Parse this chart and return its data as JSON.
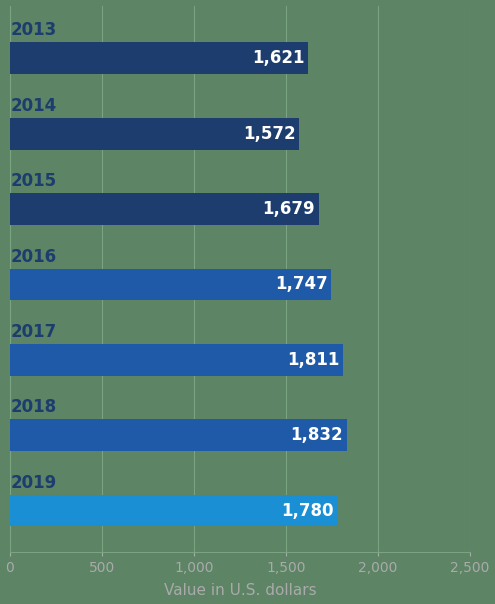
{
  "years": [
    "2013",
    "2014",
    "2015",
    "2016",
    "2017",
    "2018",
    "2019"
  ],
  "values": [
    1621,
    1572,
    1679,
    1747,
    1811,
    1832,
    1780
  ],
  "bar_colors": [
    "#1c3d6e",
    "#1c3d6e",
    "#1c3d6e",
    "#1e5aa8",
    "#1e5aa8",
    "#1e5aa8",
    "#1b8fd4"
  ],
  "bar_labels": [
    "1,621",
    "1,572",
    "1,679",
    "1,747",
    "1,811",
    "1,832",
    "1,780"
  ],
  "xlabel": "Value in U.S. dollars",
  "xlim": [
    0,
    2500
  ],
  "xticks": [
    0,
    500,
    1000,
    1500,
    2000,
    2500
  ],
  "xtick_labels": [
    "0",
    "500",
    "1,000",
    "1,500",
    "2,000",
    "2,500"
  ],
  "background_color": "#5c8465",
  "grid_color": "#7aa382",
  "year_fontsize": 12,
  "xlabel_fontsize": 11,
  "xtick_fontsize": 10,
  "value_label_fontsize": 12,
  "bar_height": 0.42,
  "year_color": "#1c3d6e",
  "tick_label_color": "#aaaaaa",
  "xlabel_color": "#aaaaaa"
}
